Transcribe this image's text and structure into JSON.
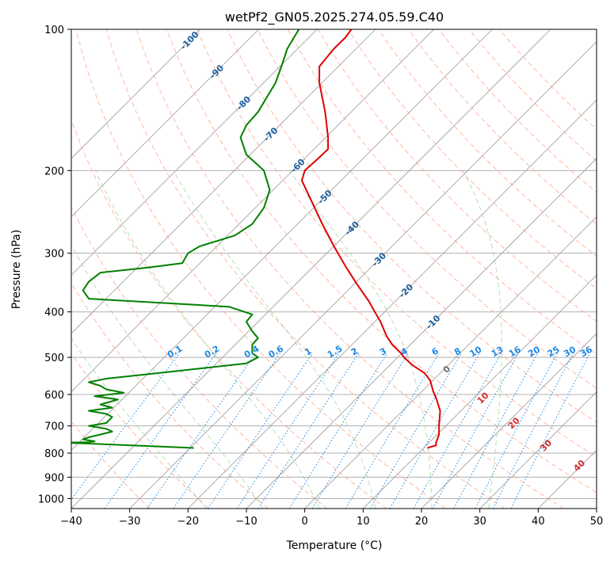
{
  "chart_data": {
    "type": "line",
    "title": "wetPf2_GN05.2025.274.05.59.C40",
    "xlabel": "Temperature (°C)",
    "ylabel": "Pressure (hPa)",
    "xlim": [
      -40,
      50
    ],
    "ylim": [
      1050,
      100
    ],
    "y_scale": "log",
    "grid": true,
    "x_ticks": [
      "−40",
      "−30",
      "−20",
      "−10",
      "0",
      "10",
      "20",
      "30",
      "40",
      "50"
    ],
    "y_ticks": [
      "100",
      "200",
      "300",
      "400",
      "500",
      "600",
      "700",
      "800",
      "900",
      "1000"
    ],
    "colors": {
      "temperature": "#e00000",
      "dewpoint": "#008000",
      "isotherm": "#999999",
      "dry_adiabat": "#ffa080",
      "moist_adiabat": "#80c080",
      "mixing_ratio": "#1e88e5",
      "background_label": "#1f5fa0"
    },
    "series": [
      {
        "points": [
          [
            21,
            780
          ],
          [
            22.5,
            770
          ],
          [
            22.5,
            760
          ],
          [
            23,
            730
          ],
          [
            23,
            700
          ],
          [
            23.2,
            650
          ],
          [
            22.5,
            610
          ],
          [
            22,
            590
          ],
          [
            21.5,
            560
          ],
          [
            20.5,
            540
          ],
          [
            18.5,
            520
          ],
          [
            17,
            500
          ],
          [
            16.5,
            490
          ],
          [
            15,
            470
          ],
          [
            14,
            450
          ],
          [
            13,
            420
          ],
          [
            12,
            400
          ],
          [
            11,
            380
          ],
          [
            9,
            350
          ],
          [
            7,
            320
          ],
          [
            5,
            290
          ],
          [
            3,
            260
          ],
          [
            1,
            230
          ],
          [
            -0.5,
            210
          ],
          [
            0,
            200
          ],
          [
            2,
            190
          ],
          [
            4,
            180
          ],
          [
            4,
            170
          ],
          [
            3.5,
            150
          ],
          [
            2.5,
            130
          ],
          [
            2.5,
            120
          ],
          [
            5,
            110
          ],
          [
            7,
            104
          ],
          [
            8,
            100
          ]
        ]
      },
      {
        "points": [
          [
            -19,
            780
          ],
          [
            -41,
            760
          ],
          [
            -37,
            758
          ],
          [
            -36,
            755
          ],
          [
            -38,
            748
          ],
          [
            -37,
            740
          ],
          [
            -33,
            720
          ],
          [
            -34,
            710
          ],
          [
            -37,
            700
          ],
          [
            -34,
            690
          ],
          [
            -33,
            670
          ],
          [
            -34,
            660
          ],
          [
            -37,
            650
          ],
          [
            -33,
            640
          ],
          [
            -35,
            630
          ],
          [
            -32,
            615
          ],
          [
            -36,
            605
          ],
          [
            -31,
            595
          ],
          [
            -34,
            585
          ],
          [
            -35,
            575
          ],
          [
            -37,
            565
          ],
          [
            -34,
            555
          ],
          [
            -22,
            535
          ],
          [
            -10,
            515
          ],
          [
            -8,
            500
          ],
          [
            -9,
            490
          ],
          [
            -9,
            470
          ],
          [
            -8,
            455
          ],
          [
            -9,
            440
          ],
          [
            -10,
            420
          ],
          [
            -9,
            405
          ],
          [
            -13,
            390
          ],
          [
            -37,
            375
          ],
          [
            -38,
            360
          ],
          [
            -37,
            345
          ],
          [
            -35,
            330
          ],
          [
            -27,
            322
          ],
          [
            -21,
            315
          ],
          [
            -20,
            300
          ],
          [
            -18,
            290
          ],
          [
            -12,
            275
          ],
          [
            -9,
            260
          ],
          [
            -7,
            240
          ],
          [
            -6,
            220
          ],
          [
            -7,
            200
          ],
          [
            -10,
            185
          ],
          [
            -11,
            170
          ],
          [
            -10,
            160
          ],
          [
            -8,
            150
          ],
          [
            -5,
            130
          ],
          [
            -4,
            120
          ],
          [
            -3,
            110
          ],
          [
            -1,
            100
          ]
        ]
      }
    ],
    "background_lines": {
      "isotherms": [
        -100,
        -90,
        -80,
        -70,
        -60,
        -50,
        -40,
        -30,
        -20,
        -10,
        0,
        10,
        20,
        30,
        40,
        50
      ],
      "isotherm_labels": [
        "-100",
        "-90",
        "-80",
        "-70",
        "-60",
        "-50",
        "-40",
        "-30",
        "-20",
        "-10"
      ],
      "dry_adiabats_theta_c": [
        -30,
        -20,
        -10,
        0,
        10,
        20,
        30,
        40,
        50,
        60,
        70,
        80,
        90,
        100,
        110,
        120,
        130,
        140,
        150,
        160
      ],
      "moist_adiabats_theta_c": [
        -20,
        -10,
        0,
        10,
        20,
        30
      ],
      "mixing_ratios_gkg": [
        0.1,
        0.2,
        0.4,
        0.6,
        1,
        1.5,
        2,
        3,
        4,
        6,
        8,
        10,
        13,
        16,
        20,
        25,
        30,
        36
      ],
      "mixing_ratio_labels": [
        "0.1",
        "0.2",
        "0.4",
        "0.6",
        "1",
        "1.5",
        "2",
        "3",
        "4",
        "6",
        "8",
        "10",
        "13",
        "16",
        "20",
        "25",
        "30",
        "36"
      ],
      "wetbulb_labels": [
        {
          "label": "0",
          "temp": 24.3,
          "p": 530
        },
        {
          "label": "10",
          "temp": 30.5,
          "p": 610
        },
        {
          "label": "20",
          "temp": 35.8,
          "p": 690
        },
        {
          "label": "30",
          "temp": 41.3,
          "p": 770
        },
        {
          "label": "40",
          "temp": 47.0,
          "p": 850
        }
      ]
    }
  }
}
